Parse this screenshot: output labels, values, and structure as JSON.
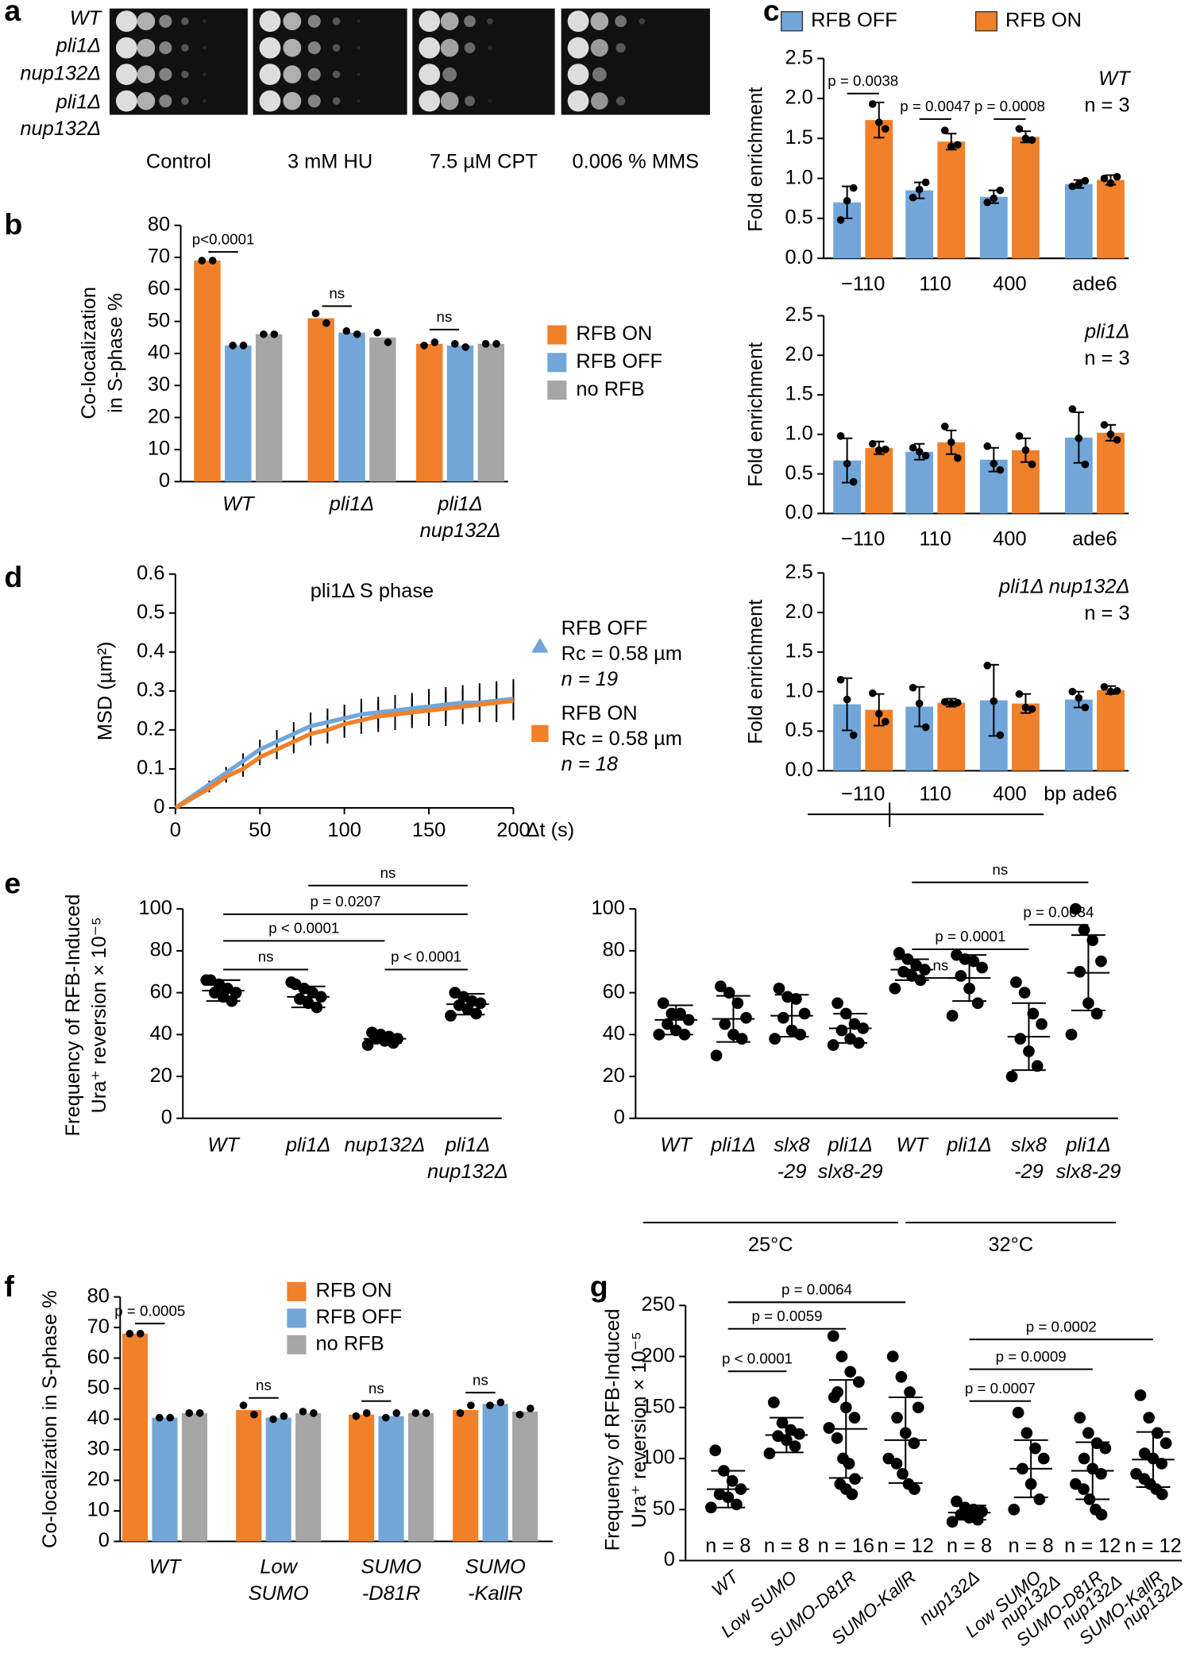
{
  "spot_assay": {
    "panel": "a",
    "strains": [
      [
        "WT"
      ],
      [
        "pli1Δ"
      ],
      [
        "nup132Δ"
      ],
      [
        "pli1Δ",
        "nup132Δ"
      ]
    ],
    "conditions": [
      "Control",
      "3 mM HU",
      "7.5 µM CPT",
      "0.006 % MMS"
    ]
  },
  "chart_data": [
    {
      "panel": "b",
      "type": "bar",
      "ylabel": [
        "Co-localization",
        "in S-phase %"
      ],
      "ylim": [
        0,
        80
      ],
      "yticks": [
        0,
        10,
        20,
        30,
        40,
        50,
        60,
        70,
        80
      ],
      "categories": [
        [
          "WT"
        ],
        [
          "pli1Δ"
        ],
        [
          "pli1Δ",
          "nup132Δ"
        ]
      ],
      "series": [
        {
          "name": "RFB ON",
          "color": "#f0802a",
          "values": [
            69,
            51,
            43
          ],
          "points": [
            [
              69,
              69
            ],
            [
              52.5,
              49.5
            ],
            [
              42.5,
              43.5
            ]
          ]
        },
        {
          "name": "RFB OFF",
          "color": "#72a6d9",
          "values": [
            42.5,
            46.5,
            42.5
          ],
          "points": [
            [
              42.5,
              42.5
            ],
            [
              47,
              46
            ],
            [
              43,
              42
            ]
          ]
        },
        {
          "name": "no RFB",
          "color": "#a6a6a6",
          "values": [
            46,
            45,
            43
          ],
          "points": [
            [
              46,
              46
            ],
            [
              46.5,
              43.5
            ],
            [
              43,
              43
            ]
          ]
        }
      ],
      "annotations": [
        "p<0.0001",
        "ns",
        "ns"
      ]
    },
    {
      "panel": "c",
      "type": "bar",
      "ylabel": [
        "Fold enrichment"
      ],
      "ylim": [
        0,
        2.5
      ],
      "yticks": [
        {
          "value": 0,
          "label": "0.0"
        },
        {
          "value": 0.5,
          "label": "0.5"
        },
        {
          "value": 1,
          "label": "1.0"
        },
        {
          "value": 1.5,
          "label": "1.5"
        },
        {
          "value": 2,
          "label": "2.0"
        },
        {
          "value": 2.5,
          "label": "2.5"
        }
      ],
      "categories": [
        "−110",
        "110",
        "400",
        "ade6"
      ],
      "series": [
        {
          "name": "RFB OFF",
          "color": "#72a6d9",
          "values": [
            0.7,
            0.85,
            0.77,
            0.93
          ],
          "errors": [
            0.2,
            0.1,
            0.08,
            0.05
          ],
          "points": [
            [
              0.48,
              0.72,
              0.88
            ],
            [
              0.76,
              0.86,
              0.95
            ],
            [
              0.7,
              0.75,
              0.85
            ],
            [
              0.9,
              0.93,
              0.97
            ]
          ]
        },
        {
          "name": "RFB ON",
          "color": "#f0802a",
          "values": [
            1.73,
            1.46,
            1.52,
            0.98
          ],
          "errors": [
            0.22,
            0.1,
            0.07,
            0.06
          ],
          "points": [
            [
              1.93,
              1.7,
              1.62
            ],
            [
              1.6,
              1.4,
              1.42
            ],
            [
              1.62,
              1.5,
              1.48
            ],
            [
              1.0,
              0.94,
              1.02
            ]
          ]
        }
      ],
      "annotations": [
        "p = 0.0038",
        "p = 0.0047",
        "p = 0.0008"
      ],
      "strain": "WT",
      "n": "n = 3"
    },
    {
      "type": "bar",
      "ylabel": [
        "Fold enrichment"
      ],
      "ylim": [
        0,
        2.5
      ],
      "yticks": [
        {
          "value": 0,
          "label": "0.0"
        },
        {
          "value": 0.5,
          "label": "0.5"
        },
        {
          "value": 1,
          "label": "1.0"
        },
        {
          "value": 1.5,
          "label": "1.5"
        },
        {
          "value": 2,
          "label": "2.0"
        },
        {
          "value": 2.5,
          "label": "2.5"
        }
      ],
      "categories": [
        "−110",
        "110",
        "400",
        "ade6"
      ],
      "series": [
        {
          "color": "#72a6d9",
          "values": [
            0.67,
            0.78,
            0.68,
            0.96
          ],
          "errors": [
            0.28,
            0.1,
            0.15,
            0.32
          ],
          "points": [
            [
              0.98,
              0.63,
              0.4
            ],
            [
              0.83,
              0.78,
              0.73
            ],
            [
              0.85,
              0.63,
              0.55
            ],
            [
              1.32,
              0.95,
              0.62
            ]
          ]
        },
        {
          "color": "#f0802a",
          "values": [
            0.83,
            0.9,
            0.8,
            1.02
          ],
          "errors": [
            0.08,
            0.15,
            0.15,
            0.1
          ],
          "points": [
            [
              0.88,
              0.8,
              0.81
            ],
            [
              1.1,
              0.9,
              0.7
            ],
            [
              0.98,
              0.8,
              0.62
            ],
            [
              1.12,
              1.0,
              0.93
            ]
          ]
        }
      ],
      "strain": "pli1Δ",
      "n": "n = 3"
    },
    {
      "type": "bar",
      "ylabel": [
        "Fold enrichment"
      ],
      "ylim": [
        0,
        2.5
      ],
      "yticks": [
        {
          "value": 0,
          "label": "0.0"
        },
        {
          "value": 0.5,
          "label": "0.5"
        },
        {
          "value": 1,
          "label": "1.0"
        },
        {
          "value": 1.5,
          "label": "1.5"
        },
        {
          "value": 2,
          "label": "2.0"
        },
        {
          "value": 2.5,
          "label": "2.5"
        }
      ],
      "categories": [
        "−110",
        "110",
        "400",
        "ade6"
      ],
      "unit": "bp",
      "series": [
        {
          "color": "#72a6d9",
          "values": [
            0.84,
            0.81,
            0.89,
            0.9
          ],
          "errors": [
            0.33,
            0.25,
            0.45,
            0.1
          ],
          "points": [
            [
              1.15,
              0.9,
              0.45
            ],
            [
              1.05,
              0.85,
              0.55
            ],
            [
              1.33,
              0.88,
              0.45
            ],
            [
              1.0,
              0.92,
              0.8
            ]
          ]
        },
        {
          "color": "#f0802a",
          "values": [
            0.77,
            0.86,
            0.85,
            1.02
          ],
          "errors": [
            0.2,
            0.05,
            0.12,
            0.05
          ],
          "points": [
            [
              0.98,
              0.72,
              0.62
            ],
            [
              0.87,
              0.85,
              0.86
            ],
            [
              0.97,
              0.8,
              0.78
            ],
            [
              1.06,
              1.0,
              1.01
            ]
          ]
        }
      ],
      "strain": "pli1Δ nup132Δ",
      "n": "n = 3"
    },
    {
      "panel": "d",
      "type": "line",
      "title": "pli1Δ S phase",
      "ylabel": [
        "MSD (µm²)"
      ],
      "xlabel": "Δt (s)",
      "xlim": [
        0,
        200
      ],
      "xticks": [
        0,
        50,
        100,
        150,
        200
      ],
      "ylim": [
        0,
        0.6
      ],
      "yticks": [
        0,
        0.1,
        0.2,
        0.3,
        0.4,
        0.5,
        0.6
      ],
      "x": [
        0,
        10,
        20,
        30,
        40,
        50,
        60,
        70,
        80,
        90,
        100,
        110,
        120,
        130,
        140,
        150,
        160,
        170,
        180,
        190,
        200
      ],
      "series": [
        {
          "name": "RFB OFF",
          "details": [
            "Rc = 0.58 µm",
            "n = 19"
          ],
          "color": "#72a6d9",
          "marker": "triangle",
          "values": [
            0,
            0.03,
            0.06,
            0.09,
            0.12,
            0.15,
            0.17,
            0.19,
            0.21,
            0.22,
            0.23,
            0.24,
            0.245,
            0.25,
            0.255,
            0.26,
            0.265,
            0.27,
            0.27,
            0.275,
            0.28
          ],
          "errors": [
            0,
            0.005,
            0.01,
            0.015,
            0.02,
            0.025,
            0.03,
            0.03,
            0.035,
            0.035,
            0.035,
            0.04,
            0.04,
            0.04,
            0.04,
            0.045,
            0.045,
            0.045,
            0.05,
            0.05,
            0.05
          ]
        },
        {
          "name": "RFB ON",
          "details": [
            "Rc = 0.58 µm",
            "n = 18"
          ],
          "color": "#f0802a",
          "marker": "square",
          "values": [
            0,
            0.025,
            0.05,
            0.08,
            0.1,
            0.13,
            0.15,
            0.17,
            0.19,
            0.2,
            0.215,
            0.225,
            0.235,
            0.24,
            0.245,
            0.25,
            0.255,
            0.26,
            0.265,
            0.27,
            0.275
          ],
          "errors": [
            0,
            0.005,
            0.01,
            0.015,
            0.02,
            0.02,
            0.025,
            0.03,
            0.03,
            0.035,
            0.035,
            0.035,
            0.04,
            0.04,
            0.04,
            0.04,
            0.045,
            0.045,
            0.045,
            0.05,
            0.05
          ]
        }
      ]
    },
    {
      "panel": "e",
      "type": "dot",
      "ylabel": [
        "Frequency of RFB-Induced",
        "Ura⁺ reversion × 10⁻⁵"
      ],
      "ylim": [
        0,
        100
      ],
      "yticks": [
        0,
        20,
        40,
        60,
        80,
        100
      ],
      "categories": [
        [
          "WT"
        ],
        [
          "pli1Δ"
        ],
        [
          "nup132Δ"
        ],
        [
          "pli1Δ",
          "nup132Δ"
        ]
      ],
      "points": [
        [
          66,
          64,
          62,
          60,
          60,
          58,
          56,
          66
        ],
        [
          64,
          62,
          60,
          58,
          57,
          55,
          53,
          65
        ],
        [
          41,
          40,
          39,
          38,
          38,
          37,
          36,
          35
        ],
        [
          60,
          58,
          56,
          55,
          54,
          52,
          50,
          49
        ]
      ],
      "means": [
        61,
        58,
        38,
        54.5
      ],
      "sds": [
        5,
        5,
        2,
        5
      ],
      "annotations": [
        "ns",
        "p < 0.0001",
        "p = 0.0207",
        "ns",
        "p < 0.0001"
      ]
    },
    {
      "type": "dot",
      "ylim": [
        0,
        100
      ],
      "yticks": [
        0,
        20,
        40,
        60,
        80,
        100
      ],
      "categories": [
        [
          "WT"
        ],
        [
          "pli1Δ"
        ],
        [
          "slx8",
          "-29"
        ],
        [
          "pli1Δ",
          "slx8-29"
        ],
        [
          "WT"
        ],
        [
          "pli1Δ"
        ],
        [
          "slx8",
          "-29"
        ],
        [
          "pli1Δ",
          "slx8-29"
        ]
      ],
      "groups": [
        "25°C",
        "32°C"
      ],
      "points": [
        [
          55,
          50,
          50,
          47,
          45,
          42,
          40,
          40
        ],
        [
          63,
          60,
          55,
          48,
          45,
          40,
          38,
          30
        ],
        [
          62,
          58,
          57,
          50,
          48,
          42,
          40,
          38
        ],
        [
          55,
          50,
          45,
          43,
          42,
          38,
          36,
          35
        ],
        [
          79,
          76,
          73,
          71,
          70,
          68,
          66,
          62
        ],
        [
          78,
          76,
          75,
          72,
          68,
          62,
          55,
          49
        ],
        [
          65,
          60,
          50,
          45,
          38,
          32,
          25,
          20
        ],
        [
          100,
          90,
          85,
          75,
          70,
          55,
          50,
          40
        ]
      ],
      "means": [
        47,
        47.5,
        49,
        43,
        71,
        67,
        39,
        69.5
      ],
      "sds": [
        7,
        11,
        10,
        7,
        5,
        11,
        16,
        18
      ],
      "annotations": [
        "ns",
        "p = 0.0034",
        "p = 0.0001",
        "ns"
      ]
    },
    {
      "panel": "f",
      "type": "bar",
      "ylabel": [
        "Co-localization in S-phase %"
      ],
      "ylim": [
        0,
        80
      ],
      "yticks": [
        0,
        10,
        20,
        30,
        40,
        50,
        60,
        70,
        80
      ],
      "categories": [
        [
          "WT"
        ],
        [
          "Low",
          "SUMO"
        ],
        [
          "SUMO",
          "-D81R"
        ],
        [
          "SUMO",
          "-KallR"
        ]
      ],
      "series": [
        {
          "name": "RFB ON",
          "color": "#f0802a",
          "values": [
            68,
            43,
            41.5,
            43
          ],
          "points": [
            [
              68,
              68
            ],
            [
              44.5,
              41.5
            ],
            [
              41,
              42
            ],
            [
              42,
              44.5
            ]
          ]
        },
        {
          "name": "RFB OFF",
          "color": "#72a6d9",
          "values": [
            40.5,
            40.5,
            41,
            45
          ],
          "points": [
            [
              40.5,
              40.5
            ],
            [
              40,
              41
            ],
            [
              40.5,
              42
            ],
            [
              44.5,
              45.5
            ]
          ]
        },
        {
          "name": "no RFB",
          "color": "#a6a6a6",
          "values": [
            42,
            42,
            42,
            42.5
          ],
          "points": [
            [
              42,
              42
            ],
            [
              42.5,
              42
            ],
            [
              42,
              42
            ],
            [
              41.5,
              43.5
            ]
          ]
        }
      ],
      "annotations": [
        "p = 0.0005",
        "ns",
        "ns",
        "ns"
      ]
    },
    {
      "panel": "g",
      "type": "dot",
      "ylabel": [
        "Frequency of RFB-Induced",
        "Ura⁺ reversion × 10⁻⁵"
      ],
      "ylim": [
        0,
        250
      ],
      "yticks": [
        0,
        50,
        100,
        150,
        200,
        250
      ],
      "categories": [
        [
          "WT"
        ],
        [
          "Low SUMO"
        ],
        [
          "SUMO-D81R"
        ],
        [
          "SUMO-KallR"
        ],
        [
          "nup132Δ"
        ],
        [
          "Low SUMO",
          "nup132Δ"
        ],
        [
          "SUMO-D81R",
          "nup132Δ"
        ],
        [
          "SUMO-KallR",
          "nup132Δ"
        ]
      ],
      "n_labels": [
        "n = 8",
        "n = 8",
        "n = 16",
        "n = 12",
        "n = 8",
        "n = 8",
        "n = 12",
        "n = 12"
      ],
      "points": [
        [
          108,
          88,
          78,
          70,
          65,
          62,
          55,
          52
        ],
        [
          155,
          135,
          128,
          124,
          122,
          118,
          112,
          105
        ],
        [
          220,
          200,
          185,
          175,
          165,
          150,
          140,
          130,
          120,
          100,
          95,
          80,
          75,
          70,
          65,
          160
        ],
        [
          200,
          180,
          165,
          150,
          140,
          125,
          115,
          100,
          95,
          85,
          75,
          70
        ],
        [
          58,
          52,
          50,
          48,
          45,
          42,
          40,
          38
        ],
        [
          145,
          125,
          110,
          100,
          90,
          75,
          60,
          50
        ],
        [
          140,
          125,
          115,
          110,
          100,
          90,
          85,
          75,
          70,
          60,
          50,
          45
        ],
        [
          162,
          140,
          125,
          115,
          105,
          100,
          95,
          85,
          80,
          75,
          70,
          65
        ]
      ],
      "means": [
        70,
        123,
        129,
        118,
        47,
        90,
        88,
        99
      ],
      "sds": [
        18,
        17,
        48,
        42,
        7,
        28,
        28,
        27
      ],
      "annotations": [
        "p < 0.0001",
        "p = 0.0059",
        "p = 0.0064",
        "p = 0.0007",
        "p = 0.0009",
        "p = 0.0002"
      ]
    }
  ]
}
